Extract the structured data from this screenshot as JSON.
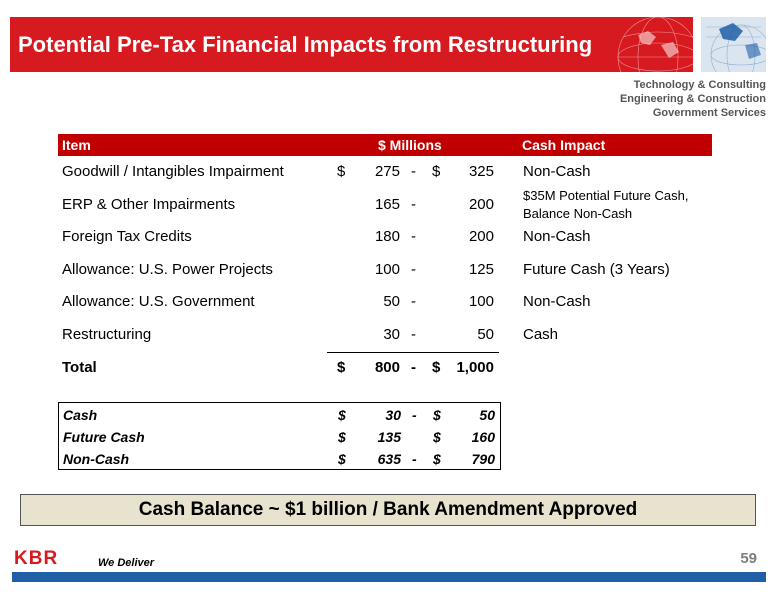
{
  "title": "Potential Pre-Tax Financial Impacts from Restructuring",
  "tagline": [
    "Technology & Consulting",
    "Engineering & Construction",
    "Government Services"
  ],
  "table": {
    "headers": {
      "item": "Item",
      "millions": "$ Millions",
      "impact": "Cash Impact"
    },
    "rows": [
      {
        "item": "Goodwill / Intangibles Impairment",
        "cur1": "$",
        "low": "275",
        "dash": "-",
        "cur2": "$",
        "high": "325",
        "impact": "Non-Cash"
      },
      {
        "item": "ERP & Other Impairments",
        "cur1": "",
        "low": "165",
        "dash": "-",
        "cur2": "",
        "high": "200",
        "impact": "$35M Potential Future Cash, Balance Non-Cash"
      },
      {
        "item": "Foreign Tax Credits",
        "cur1": "",
        "low": "180",
        "dash": "-",
        "cur2": "",
        "high": "200",
        "impact": "Non-Cash"
      },
      {
        "item": "Allowance: U.S. Power Projects",
        "cur1": "",
        "low": "100",
        "dash": "-",
        "cur2": "",
        "high": "125",
        "impact": "Future Cash (3 Years)"
      },
      {
        "item": "Allowance: U.S. Government",
        "cur1": "",
        "low": "50",
        "dash": "-",
        "cur2": "",
        "high": "100",
        "impact": "Non-Cash"
      },
      {
        "item": "Restructuring",
        "cur1": "",
        "low": "30",
        "dash": "-",
        "cur2": "",
        "high": "50",
        "impact": "Cash"
      }
    ],
    "total": {
      "item": "Total",
      "cur1": "$",
      "low": "800",
      "dash": "-",
      "cur2": "$",
      "high": "1,000"
    }
  },
  "summary": [
    {
      "label": "Cash",
      "cur1": "$",
      "low": "30",
      "dash": "-",
      "cur2": "$",
      "high": "50"
    },
    {
      "label": "Future Cash",
      "cur1": "$",
      "low": "135",
      "dash": "",
      "cur2": "$",
      "high": "160"
    },
    {
      "label": "Non-Cash",
      "cur1": "$",
      "low": "635",
      "dash": "-",
      "cur2": "$",
      "high": "790"
    }
  ],
  "banner": "Cash Balance ~ $1 billion / Bank Amendment Approved",
  "footer": {
    "logo": "KBR",
    "slogan": "We Deliver",
    "page": "59"
  },
  "colors": {
    "title_red": "#d71920",
    "header_red": "#c00000",
    "footer_blue": "#1f5fa8",
    "banner_bg": "#e8e3cf"
  }
}
